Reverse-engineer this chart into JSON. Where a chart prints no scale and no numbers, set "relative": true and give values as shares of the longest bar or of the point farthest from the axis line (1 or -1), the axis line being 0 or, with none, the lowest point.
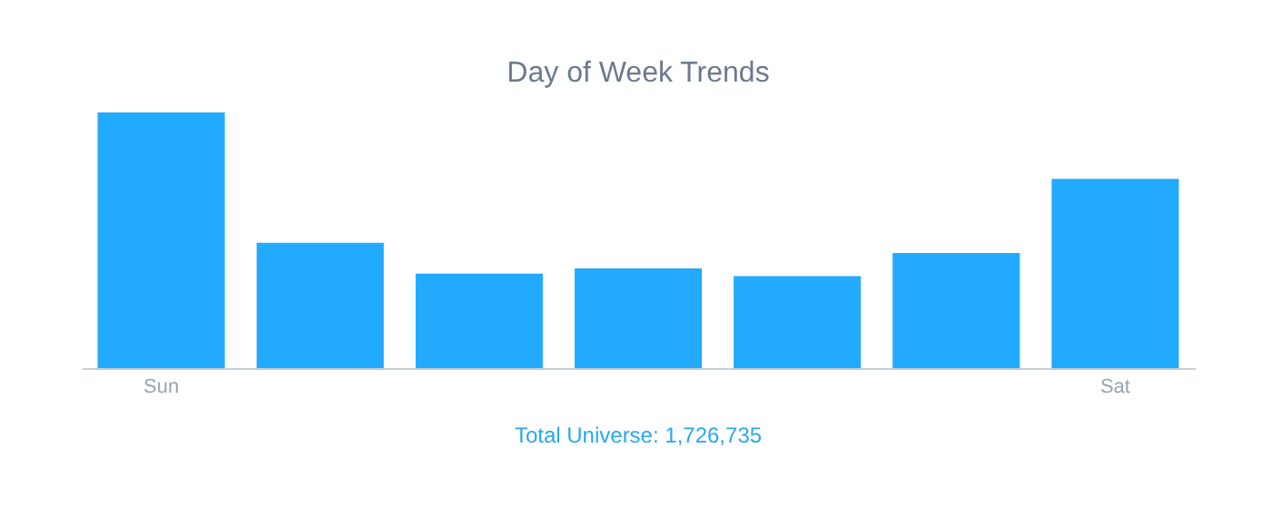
{
  "chart_data": {
    "type": "bar",
    "title": "Day of Week Trends",
    "categories": [
      "Sun",
      null,
      null,
      null,
      null,
      null,
      "Sat"
    ],
    "values": [
      1,
      0.49,
      0.37,
      0.39,
      0.36,
      0.45,
      0.74
    ],
    "relative": true,
    "color": "#22aaff",
    "grid": false,
    "annotations": [
      "Total Universe: 1,726,735"
    ]
  }
}
